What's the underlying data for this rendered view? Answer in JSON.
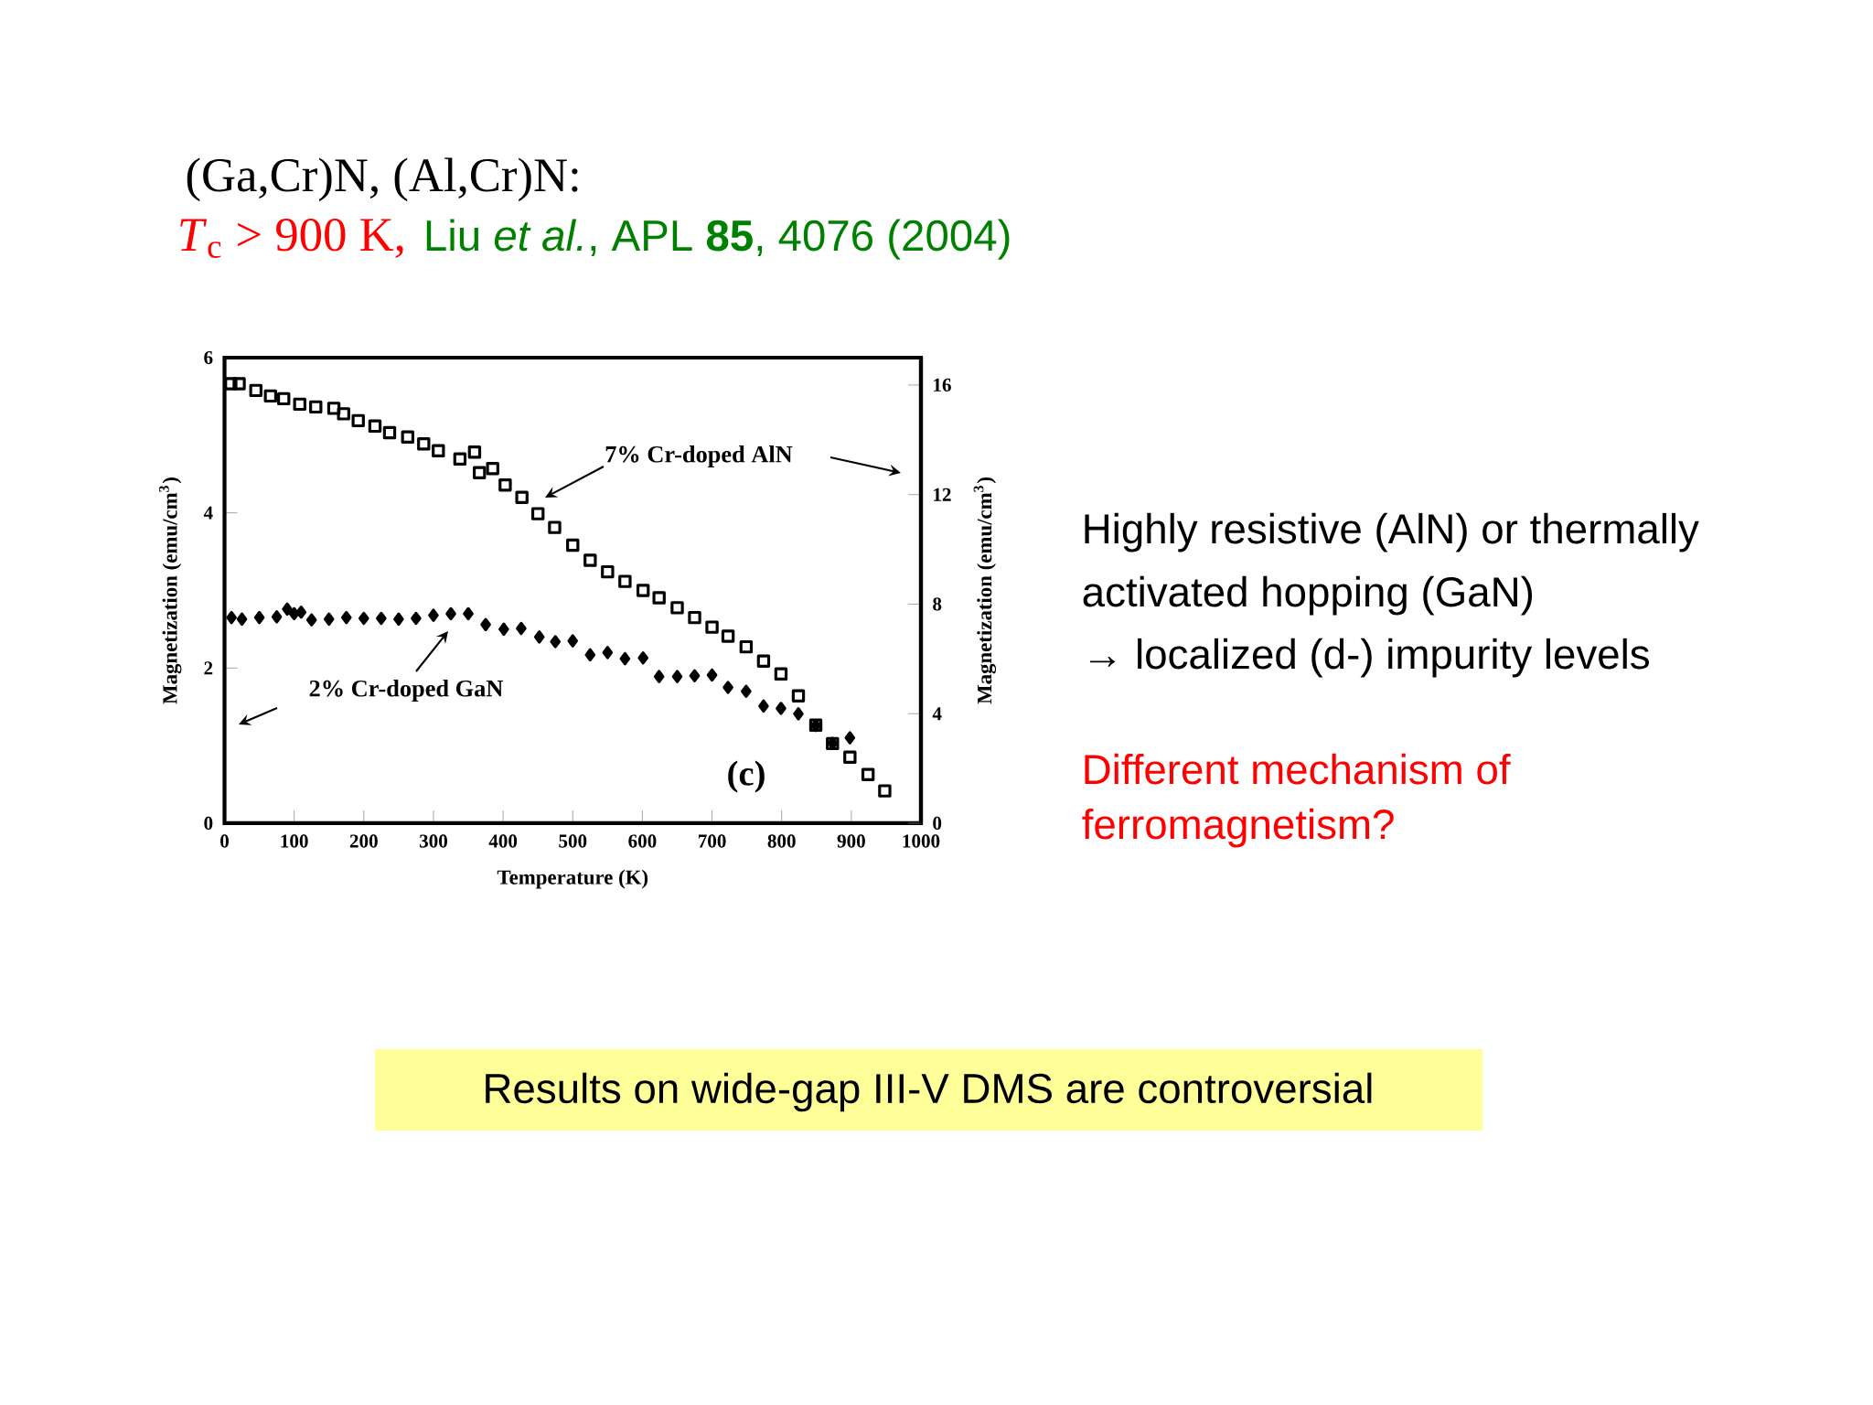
{
  "chart_data": {
    "type": "scatter",
    "title": "(Ga,Cr)N, (Al,Cr)N:",
    "subtitle": "Liu *et al.*, APL **85**, 4076 (2004)",
    "xlabel": "Temperature (K)",
    "ylabel": "Magnetization (emu/cm$^{3}$)",
    "y2label": "Magnetization (emu/cm$^{3}$)",
    "xlim": [
      0,
      1000
    ],
    "xticks": [
      0,
      100,
      200,
      300,
      400,
      500,
      600,
      700,
      800,
      900,
      1000
    ],
    "ylim": [
      0,
      6
    ],
    "yticks": [
      0,
      2,
      4,
      6
    ],
    "y2lim": [
      0,
      17
    ],
    "y2ticks": [
      0,
      4,
      8,
      12,
      16
    ],
    "grid": false,
    "annotations": [
      "*T*$_{c}$ > 900 K,",
      "(c)",
      "Highly resistive (AlN) or thermally",
      "activated hopping (GaN)",
      "→ localized (d-) impurity levels",
      "Different mechanism of",
      "ferromagnetism?",
      "Results on wide-gap III-V DMS are controversial"
    ],
    "series": [
      {
        "name": "2% Cr-doped GaN",
        "color": "#000000",
        "marker": "diamond",
        "x": [
          10,
          25,
          50,
          75,
          90,
          100,
          110,
          125,
          150,
          175,
          200,
          225,
          250,
          275,
          300,
          325,
          350,
          375,
          401,
          426,
          452,
          475,
          500,
          525,
          550,
          575,
          601,
          624,
          650,
          675,
          700,
          723,
          749,
          774,
          799,
          824,
          849,
          873,
          898
        ],
        "values": [
          2.65,
          2.63,
          2.65,
          2.66,
          2.76,
          2.7,
          2.72,
          2.62,
          2.63,
          2.65,
          2.64,
          2.64,
          2.63,
          2.64,
          2.68,
          2.7,
          2.7,
          2.56,
          2.5,
          2.51,
          2.4,
          2.34,
          2.35,
          2.17,
          2.2,
          2.12,
          2.13,
          1.89,
          1.89,
          1.9,
          1.91,
          1.75,
          1.7,
          1.51,
          1.48,
          1.41,
          1.26,
          1.03,
          1.1
        ]
      },
      {
        "name": "7% Cr-doped AlN",
        "color": "#000000",
        "marker": "square",
        "axis": "y2",
        "x": [
          9,
          21,
          45,
          66,
          85,
          108,
          131,
          157,
          171,
          192,
          216,
          237,
          263,
          286,
          307,
          338,
          359,
          366,
          385,
          403,
          427,
          450,
          474,
          500,
          525,
          550,
          575,
          601,
          624,
          650,
          675,
          700,
          723,
          749,
          774,
          799,
          824,
          849,
          873,
          898,
          924,
          948
        ],
        "values": [
          16.05,
          16.05,
          15.8,
          15.6,
          15.5,
          15.3,
          15.2,
          15.15,
          14.95,
          14.7,
          14.5,
          14.26,
          14.1,
          13.85,
          13.6,
          13.3,
          13.55,
          12.8,
          12.95,
          12.35,
          11.9,
          11.3,
          10.8,
          10.15,
          9.6,
          9.18,
          8.83,
          8.5,
          8.23,
          7.87,
          7.51,
          7.16,
          6.83,
          6.44,
          5.92,
          5.45,
          4.65,
          3.58,
          2.91,
          2.41,
          1.78,
          1.18
        ]
      }
    ]
  }
}
